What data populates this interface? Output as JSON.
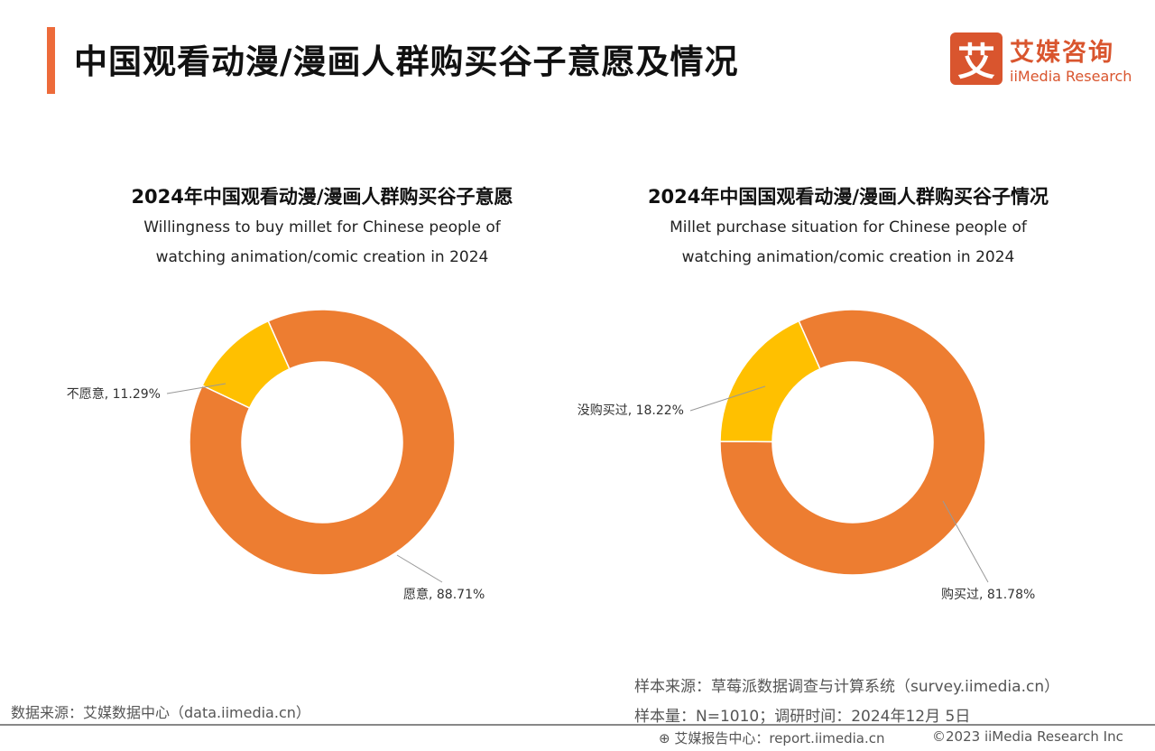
{
  "header": {
    "title": "中国观看动漫/漫画人群购买谷子意愿及情况",
    "logo_cn": "艾媒咨询",
    "logo_en": "iiMedia Research",
    "logo_mark": "艾"
  },
  "chart_data": [
    {
      "type": "pie",
      "donut": true,
      "title": "2024年中国观看动漫/漫画人群购买谷子意愿",
      "subtitle_line1": "Willingness to buy millet for Chinese people of",
      "subtitle_line2": "watching animation/comic creation in 2024",
      "slices": [
        {
          "label": "愿意",
          "value": 88.71,
          "display": "愿意, 88.71%",
          "color": "#ED7D31"
        },
        {
          "label": "不愿意",
          "value": 11.29,
          "display": "不愿意, 11.29%",
          "color": "#FFC000"
        }
      ]
    },
    {
      "type": "pie",
      "donut": true,
      "title": "2024年中国国观看动漫/漫画人群购买谷子情况",
      "subtitle_line1": "Millet purchase situation for Chinese people of",
      "subtitle_line2": "watching animation/comic creation in 2024",
      "slices": [
        {
          "label": "购买过",
          "value": 81.78,
          "display": "购买过, 81.78%",
          "color": "#ED7D31"
        },
        {
          "label": "没购买过",
          "value": 18.22,
          "display": "没购买过, 18.22%",
          "color": "#FFC000"
        }
      ]
    }
  ],
  "footer": {
    "data_source": "数据来源：艾媒数据中心（data.iimedia.cn）",
    "sample_source": "样本来源：草莓派数据调查与计算系统（survey.iimedia.cn）",
    "sample_size": "样本量：N=1010；调研时间：2024年12月 5日",
    "report_center": "艾媒报告中心：report.iimedia.cn",
    "copyright": "©2023  iiMedia Research  Inc"
  }
}
